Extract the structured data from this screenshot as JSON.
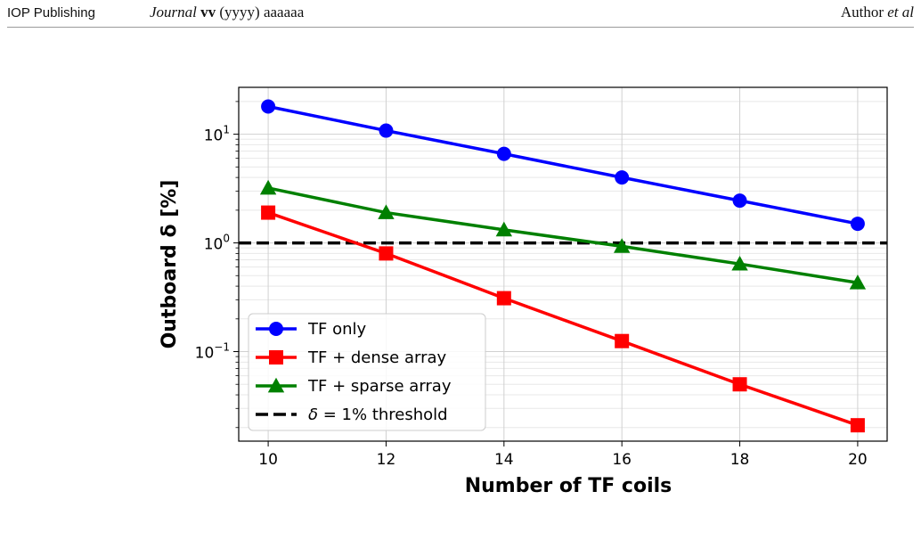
{
  "header": {
    "publisher": "IOP Publishing",
    "journal_italic": "Journal",
    "journal_volume": "vv",
    "journal_rest": "(yyyy) aaaaaa",
    "author_name": "Author ",
    "author_etal": "et al"
  },
  "chart_data": {
    "type": "line",
    "xlabel": "Number of TF coils",
    "ylabel": "Outboard δ [%]",
    "x": [
      10,
      12,
      14,
      16,
      18,
      20
    ],
    "xlim": [
      9.5,
      20.5
    ],
    "ylim": [
      0.015,
      27
    ],
    "yscale": "log",
    "grid": true,
    "xticks": [
      "10",
      "12",
      "14",
      "16",
      "18",
      "20"
    ],
    "yticks": [
      {
        "value": 10,
        "base": "10",
        "exp": "1"
      },
      {
        "value": 1,
        "base": "10",
        "exp": "0"
      },
      {
        "value": 0.1,
        "base": "10",
        "exp": "−1"
      }
    ],
    "series": [
      {
        "name": "TF only",
        "color": "#0000ff",
        "marker": "circle",
        "values": [
          18,
          10.8,
          6.6,
          4.0,
          2.45,
          1.5
        ]
      },
      {
        "name": "TF + dense array",
        "color": "#ff0000",
        "marker": "square",
        "values": [
          1.9,
          0.8,
          0.31,
          0.125,
          0.05,
          0.021
        ]
      },
      {
        "name": "TF + sparse array",
        "color": "#008000",
        "marker": "triangle",
        "values": [
          3.2,
          1.9,
          1.32,
          0.93,
          0.64,
          0.43
        ]
      }
    ],
    "threshold": {
      "value": 1,
      "color": "#000000",
      "style": "dashed",
      "label_symbol": "δ",
      "label_rest": " = 1% threshold"
    },
    "legend_position": "lower-left"
  }
}
